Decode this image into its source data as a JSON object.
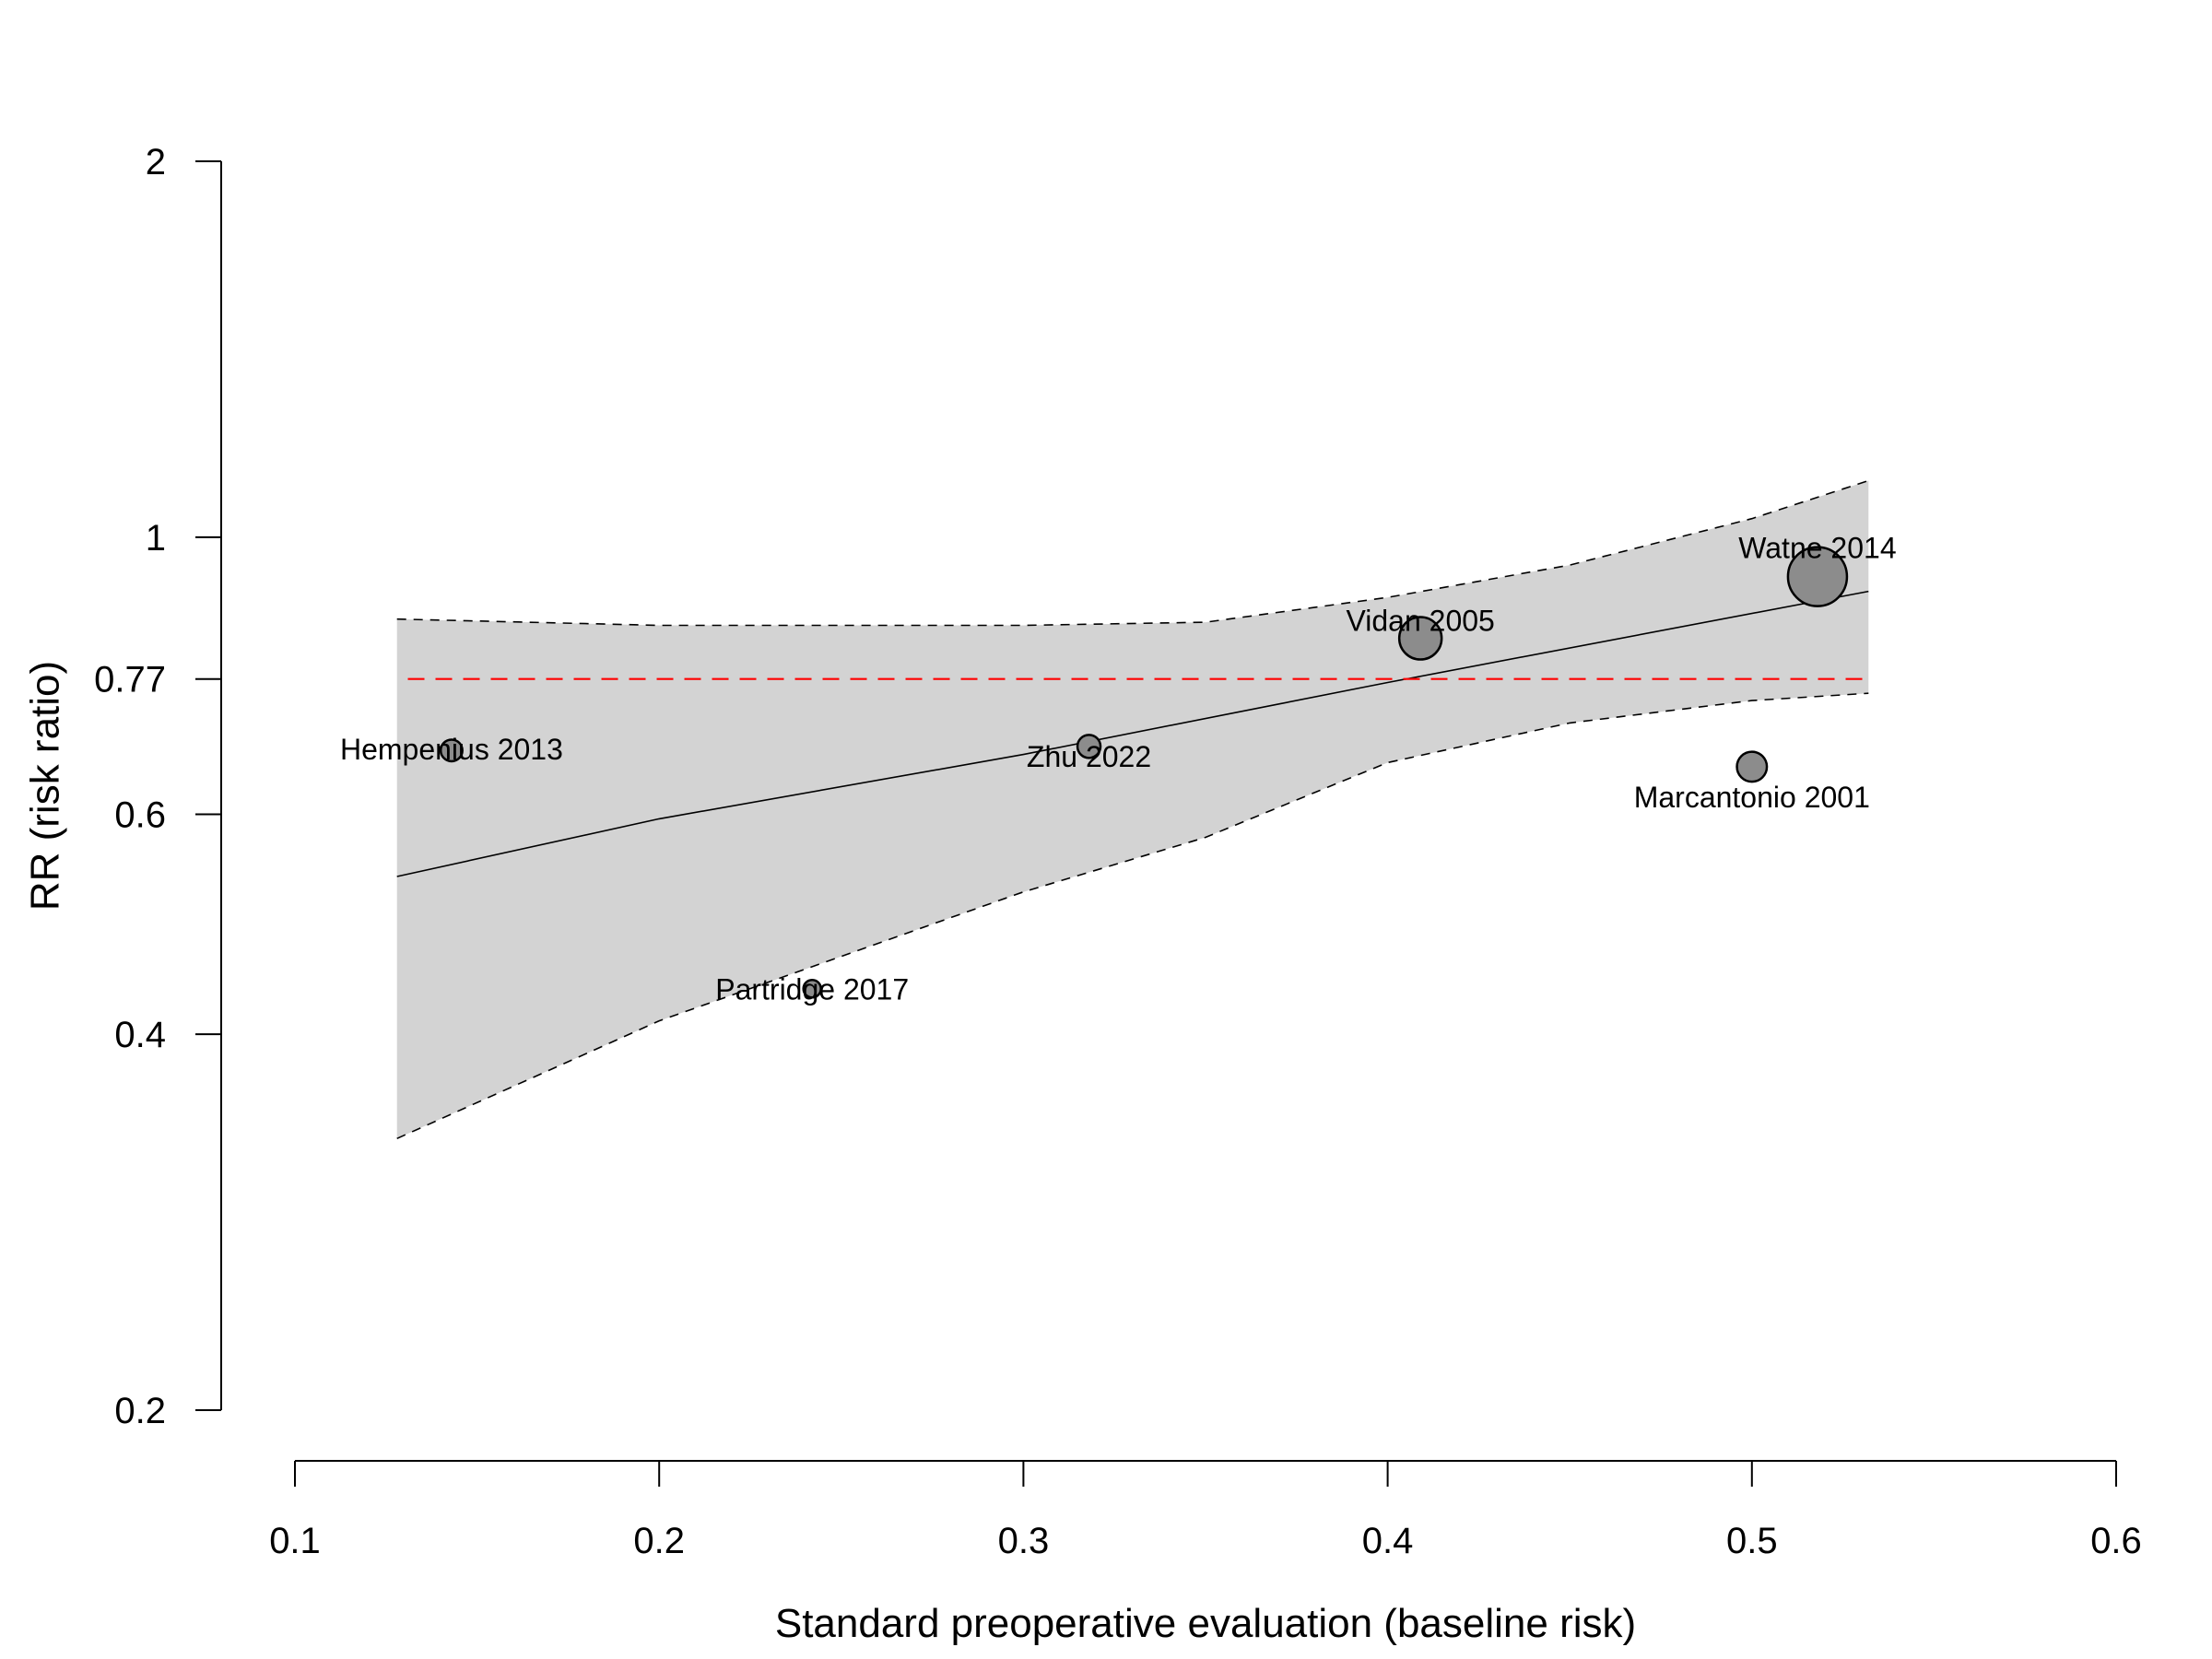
{
  "chart_data": {
    "type": "scatter",
    "xlabel": "Standard preoperative evaluation (baseline risk)",
    "ylabel": "RR (risk ratio)",
    "xlim": [
      0.1,
      0.6
    ],
    "ylim": [
      0.2,
      2
    ],
    "y_scale": "log",
    "x_ticks": [
      {
        "value": 0.1,
        "label": "0.1"
      },
      {
        "value": 0.2,
        "label": "0.2"
      },
      {
        "value": 0.3,
        "label": "0.3"
      },
      {
        "value": 0.4,
        "label": "0.4"
      },
      {
        "value": 0.5,
        "label": "0.5"
      },
      {
        "value": 0.6,
        "label": "0.6"
      }
    ],
    "y_ticks": [
      {
        "value": 0.2,
        "label": "0.2"
      },
      {
        "value": 0.4,
        "label": "0.4"
      },
      {
        "value": 0.6,
        "label": "0.6"
      },
      {
        "value": 0.77,
        "label": "0.77"
      },
      {
        "value": 1,
        "label": "1"
      },
      {
        "value": 2,
        "label": "2"
      }
    ],
    "grid": false,
    "studies": [
      {
        "label": "Hempenius 2013",
        "x": 0.143,
        "y": 0.675,
        "weight": 0.9
      },
      {
        "label": "Partridge 2017",
        "x": 0.242,
        "y": 0.435,
        "weight": 0.6
      },
      {
        "label": "Zhu 2022",
        "x": 0.318,
        "y": 0.68,
        "weight": 1.0
      },
      {
        "label": "Vidan 2005",
        "x": 0.409,
        "y": 0.83,
        "weight": 2.4
      },
      {
        "label": "Marcantonio 2001",
        "x": 0.5,
        "y": 0.655,
        "weight": 1.5
      },
      {
        "label": "Watne 2014",
        "x": 0.518,
        "y": 0.93,
        "weight": 3.6
      }
    ],
    "reference_line": {
      "y": 0.77,
      "x_range": [
        0.131,
        0.532
      ],
      "color": "#ff0000"
    },
    "regression": {
      "x_range": [
        0.128,
        0.532
      ],
      "fit": [
        [
          0.128,
          0.535
        ],
        [
          0.2,
          0.595
        ],
        [
          0.3,
          0.67
        ],
        [
          0.4,
          0.765
        ],
        [
          0.532,
          0.905
        ]
      ],
      "ci_upper": [
        [
          0.128,
          0.86
        ],
        [
          0.2,
          0.85
        ],
        [
          0.3,
          0.85
        ],
        [
          0.35,
          0.855
        ],
        [
          0.4,
          0.895
        ],
        [
          0.45,
          0.95
        ],
        [
          0.5,
          1.035
        ],
        [
          0.532,
          1.11
        ]
      ],
      "ci_lower": [
        [
          0.128,
          0.33
        ],
        [
          0.2,
          0.41
        ],
        [
          0.3,
          0.52
        ],
        [
          0.35,
          0.575
        ],
        [
          0.4,
          0.66
        ],
        [
          0.45,
          0.71
        ],
        [
          0.5,
          0.74
        ],
        [
          0.532,
          0.75
        ]
      ]
    },
    "colors": {
      "band": "#d3d3d3",
      "point": "#8c8c8c",
      "reference": "#ff0000"
    }
  }
}
